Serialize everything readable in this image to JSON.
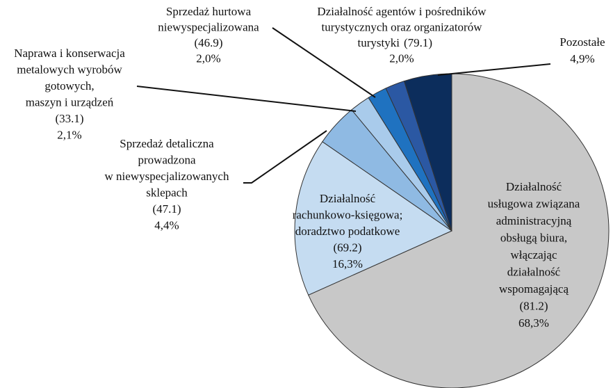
{
  "chart_data": {
    "type": "pie",
    "categories": [
      "Działalność\nusługowa związana\nadministracyjną\nobsługą biura,\nwłączając\ndziałalność\nwspomagającą",
      "Działalność\nrachunkowo-księgowa;\ndoradztwo podatkowe",
      "Sprzedaż detaliczna\nprowadzona\nw niewyspecjalizowanych\nsklepach",
      "Naprawa i konserwacja\nmetalowych wyrobów\ngotowych,\nmaszyn i urządzeń",
      "Sprzedaż hurtowa\nniewyspecjalizowana",
      "Działalność agentów i pośredników\nturystycznych oraz organizatorów\nturystyki",
      "Pozostałe"
    ],
    "codes": [
      "(81.2)",
      "(69.2)",
      "(47.1)",
      "(33.1)",
      "(46.9)",
      "(79.1)",
      null
    ],
    "values": [
      68.3,
      16.3,
      4.4,
      2.1,
      2.0,
      2.0,
      4.9
    ],
    "value_labels": [
      "68,3%",
      "16,3%",
      "4,4%",
      "2,1%",
      "2,0%",
      "2,0%",
      "4,9%"
    ],
    "colors": [
      "#c8c8c8",
      "#c5dcf1",
      "#8fbae3",
      "#a9cbeb",
      "#1f72c0",
      "#2b58a3",
      "#0c2d5c"
    ]
  }
}
